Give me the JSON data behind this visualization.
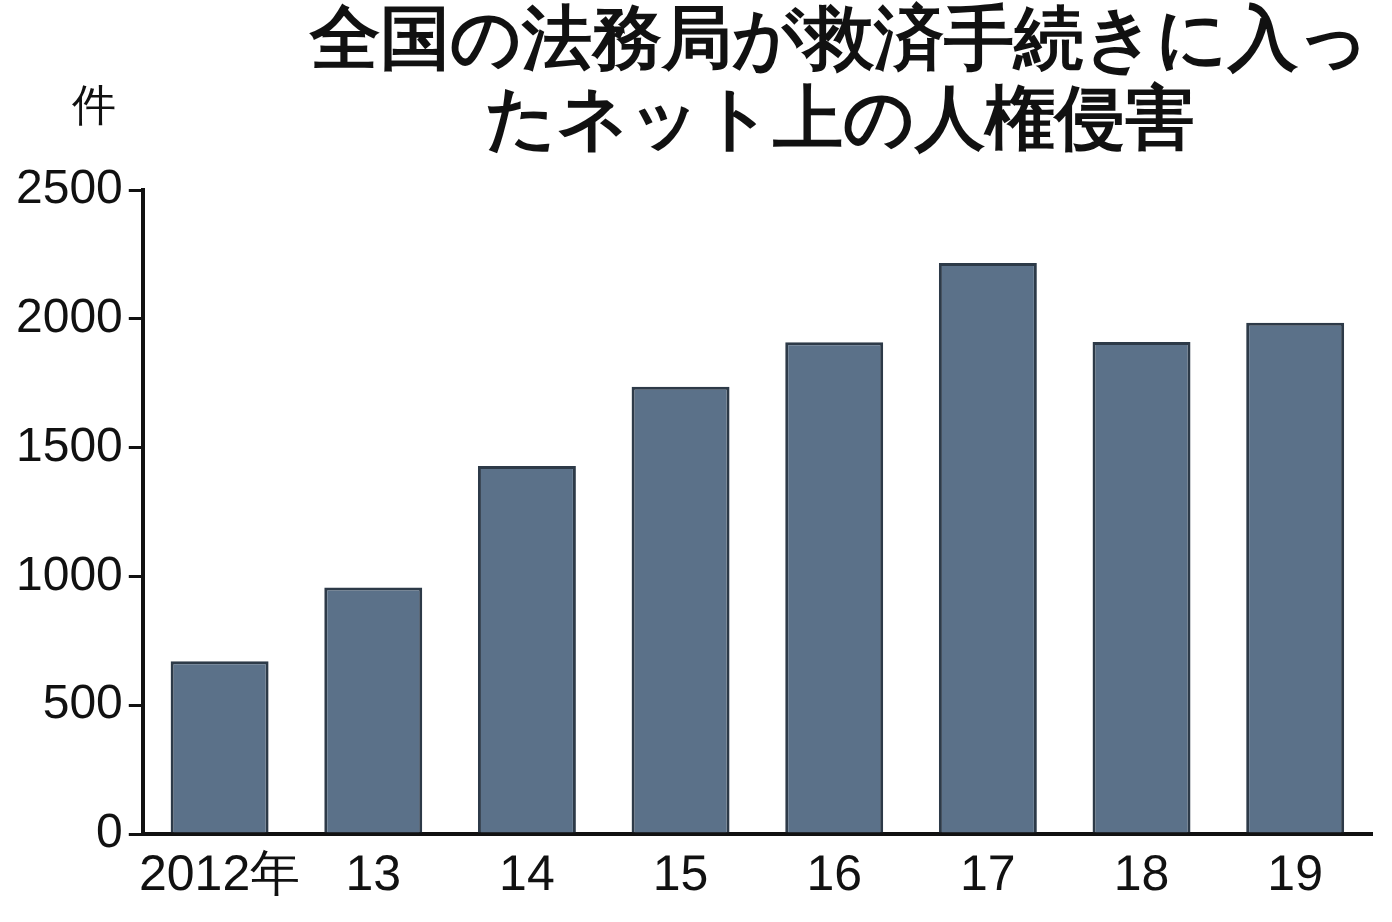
{
  "chart_data": {
    "type": "bar",
    "title": "全国の法務局が救済手続きに入ったネット上の人権侵害",
    "ylabel": "件",
    "categories": [
      "2012年",
      "13",
      "14",
      "15",
      "16",
      "17",
      "18",
      "19"
    ],
    "values": [
      671,
      957,
      1429,
      1736,
      1909,
      2217,
      1910,
      1985
    ],
    "color": "#5b7189",
    "ylim": [
      0,
      2500
    ],
    "yticks": [
      0,
      500,
      1000,
      1500,
      2000,
      2500
    ],
    "grid": false,
    "legend": false
  }
}
